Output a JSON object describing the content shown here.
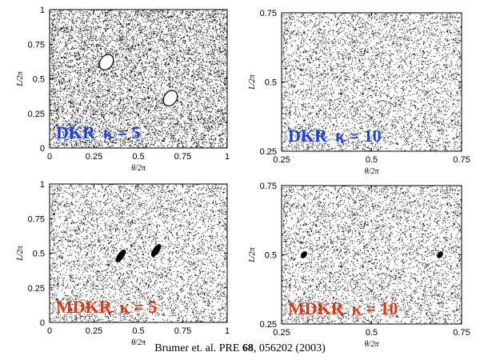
{
  "chart_data": [
    {
      "type": "scatter",
      "label_text": "DKR",
      "kappa_text": "κ = 5",
      "label_color": "#1f3fd6",
      "xlabel": "θ/2π",
      "ylabel": "L/2π",
      "xlim": [
        0,
        1
      ],
      "ylim": [
        0,
        1
      ],
      "xticks": [
        "0",
        "0.25",
        "0.5",
        "0.75",
        "1"
      ],
      "yticks": [
        "0",
        "0.25",
        "0.5",
        "0.75",
        "1"
      ],
      "density": 0.5,
      "islands": [
        {
          "x": 0.32,
          "y": 0.62,
          "rx": 0.035,
          "ry": 0.06,
          "fill": "white"
        },
        {
          "x": 0.68,
          "y": 0.36,
          "rx": 0.035,
          "ry": 0.06,
          "fill": "white"
        }
      ]
    },
    {
      "type": "scatter",
      "label_text": "DKR",
      "kappa_text": "κ = 10",
      "label_color": "#1f3fd6",
      "xlabel": "θ/2π",
      "ylabel": "L/2π",
      "xlim": [
        0.25,
        0.75
      ],
      "ylim": [
        0.25,
        0.75
      ],
      "xticks": [
        "0.25",
        "0.5",
        "0.75"
      ],
      "yticks": [
        "0.25",
        "0.5",
        "0.75"
      ],
      "density": 0.18,
      "islands": []
    },
    {
      "type": "scatter",
      "label_text": "MDKR",
      "kappa_text": "κ = 5",
      "label_color": "#d63a1a",
      "xlabel": "θ/2π",
      "ylabel": "L/2π",
      "xlim": [
        0,
        1
      ],
      "ylim": [
        0,
        1
      ],
      "xticks": [
        "0",
        "0.25",
        "0.5",
        "0.75",
        "1"
      ],
      "yticks": [
        "0",
        "0.25",
        "0.5",
        "0.75",
        "1"
      ],
      "density": 0.5,
      "islands": [
        {
          "x": 0.4,
          "y": 0.48,
          "rx": 0.015,
          "ry": 0.05,
          "fill": "black"
        },
        {
          "x": 0.6,
          "y": 0.52,
          "rx": 0.015,
          "ry": 0.05,
          "fill": "black"
        }
      ]
    },
    {
      "type": "scatter",
      "label_text": "MDKR",
      "kappa_text": "κ = 10",
      "label_color": "#d63a1a",
      "xlabel": "θ/2π",
      "ylabel": "L/2π",
      "xlim": [
        0.25,
        0.75
      ],
      "ylim": [
        0.25,
        0.75
      ],
      "xticks": [
        "0.25",
        "0.5",
        "0.75"
      ],
      "yticks": [
        "0.25",
        "0.5",
        "0.75"
      ],
      "density": 0.18,
      "islands": [
        {
          "x": 0.312,
          "y": 0.5,
          "rx": 0.006,
          "ry": 0.012,
          "fill": "black"
        },
        {
          "x": 0.69,
          "y": 0.5,
          "rx": 0.006,
          "ry": 0.012,
          "fill": "black"
        }
      ]
    }
  ],
  "citation": {
    "prefix": "Brumer et. al. PRE ",
    "volume": "68",
    "suffix": ", 056202 (2003)"
  }
}
